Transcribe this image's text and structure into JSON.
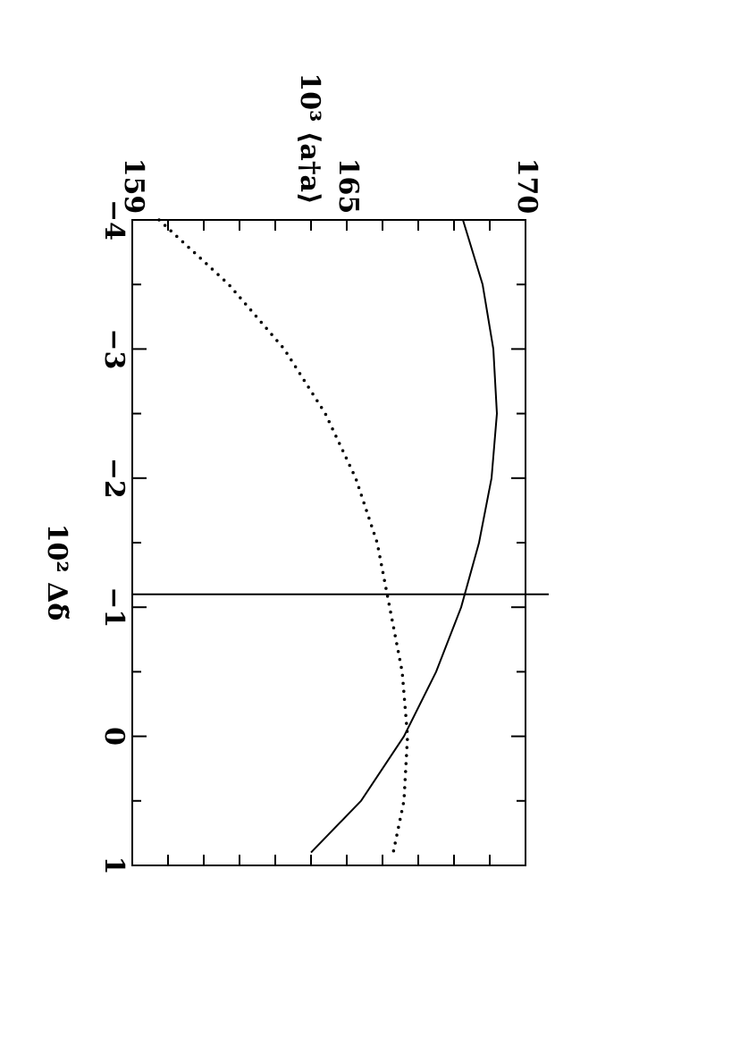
{
  "chart_data": {
    "type": "line",
    "x_label": "10² Δδ̃",
    "y_label": "10³ ⟨a†a⟩",
    "xlim": [
      -4,
      1
    ],
    "xticks": [
      {
        "value": -4,
        "label": "−4"
      },
      {
        "value": -3,
        "label": "−3"
      },
      {
        "value": -2,
        "label": "−2"
      },
      {
        "value": -1,
        "label": "−1"
      },
      0,
      1
    ],
    "ylim": [
      159,
      170
    ],
    "yticks": [
      159,
      165,
      170
    ],
    "x": [
      -4,
      -3.5,
      -3,
      -2.5,
      -2,
      -1.5,
      -1,
      -0.5,
      0,
      0.5,
      0.9
    ],
    "series": [
      {
        "color": "#000000",
        "style": "solid",
        "values": [
          168.25,
          168.8,
          169.1,
          169.2,
          169.05,
          168.7,
          168.2,
          167.5,
          166.6,
          165.4,
          164.0
        ]
      },
      {
        "color": "#000000",
        "style": "dotted",
        "values": [
          159.75,
          161.7,
          163.25,
          164.4,
          165.25,
          165.85,
          166.2,
          166.55,
          166.7,
          166.6,
          166.3
        ]
      }
    ],
    "reference_x": -1.1
  }
}
